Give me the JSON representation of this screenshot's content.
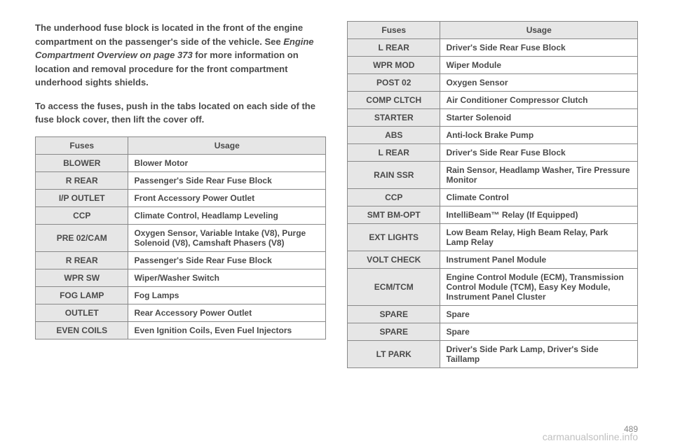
{
  "intro": {
    "p1_part1": "The underhood fuse block is located in the front of the engine compartment on the passenger's side of the vehicle. See ",
    "p1_italic": "Engine Compartment Overview on page 373",
    "p1_part2": " for more information on location and removal procedure for the front compartment underhood sights shields.",
    "p2": "To access the fuses, push in the tabs located on each side of the fuse block cover, then lift the cover off."
  },
  "table1": {
    "headers": {
      "col1": "Fuses",
      "col2": "Usage"
    },
    "rows": [
      {
        "fuse": "BLOWER",
        "usage": "Blower Motor"
      },
      {
        "fuse": "R REAR",
        "usage": "Passenger's Side Rear Fuse Block"
      },
      {
        "fuse": "I/P OUTLET",
        "usage": "Front Accessory Power Outlet"
      },
      {
        "fuse": "CCP",
        "usage": "Climate Control, Headlamp Leveling"
      },
      {
        "fuse": "PRE 02/CAM",
        "usage": "Oxygen Sensor, Variable Intake (V8), Purge Solenoid (V8), Camshaft Phasers (V8)"
      },
      {
        "fuse": "R REAR",
        "usage": "Passenger's Side Rear Fuse Block"
      },
      {
        "fuse": "WPR SW",
        "usage": "Wiper/Washer Switch"
      },
      {
        "fuse": "FOG LAMP",
        "usage": "Fog Lamps"
      },
      {
        "fuse": "OUTLET",
        "usage": "Rear Accessory Power Outlet"
      },
      {
        "fuse": "EVEN COILS",
        "usage": "Even Ignition Coils, Even Fuel Injectors"
      }
    ]
  },
  "table2": {
    "headers": {
      "col1": "Fuses",
      "col2": "Usage"
    },
    "rows": [
      {
        "fuse": "L REAR",
        "usage": "Driver's Side Rear Fuse Block"
      },
      {
        "fuse": "WPR MOD",
        "usage": "Wiper Module"
      },
      {
        "fuse": "POST 02",
        "usage": "Oxygen Sensor"
      },
      {
        "fuse": "COMP CLTCH",
        "usage": "Air Conditioner Compressor Clutch"
      },
      {
        "fuse": "STARTER",
        "usage": "Starter Solenoid"
      },
      {
        "fuse": "ABS",
        "usage": "Anti-lock Brake Pump"
      },
      {
        "fuse": "L REAR",
        "usage": "Driver's Side Rear Fuse Block"
      },
      {
        "fuse": "RAIN SSR",
        "usage": "Rain Sensor, Headlamp Washer, Tire Pressure Monitor"
      },
      {
        "fuse": "CCP",
        "usage": "Climate Control"
      },
      {
        "fuse": "SMT BM-OPT",
        "usage": "IntelliBeam™ Relay (If Equipped)"
      },
      {
        "fuse": "EXT LIGHTS",
        "usage": "Low Beam Relay, High Beam Relay, Park Lamp Relay"
      },
      {
        "fuse": "VOLT CHECK",
        "usage": "Instrument Panel Module"
      },
      {
        "fuse": "ECM/TCM",
        "usage": "Engine Control Module (ECM), Transmission Control Module (TCM), Easy Key Module, Instrument Panel Cluster"
      },
      {
        "fuse": "SPARE",
        "usage": "Spare"
      },
      {
        "fuse": "SPARE",
        "usage": "Spare"
      },
      {
        "fuse": "LT PARK",
        "usage": "Driver's Side Park Lamp, Driver's Side Taillamp"
      }
    ]
  },
  "pageNumber": "489",
  "watermark": "carmanualsonline.info"
}
